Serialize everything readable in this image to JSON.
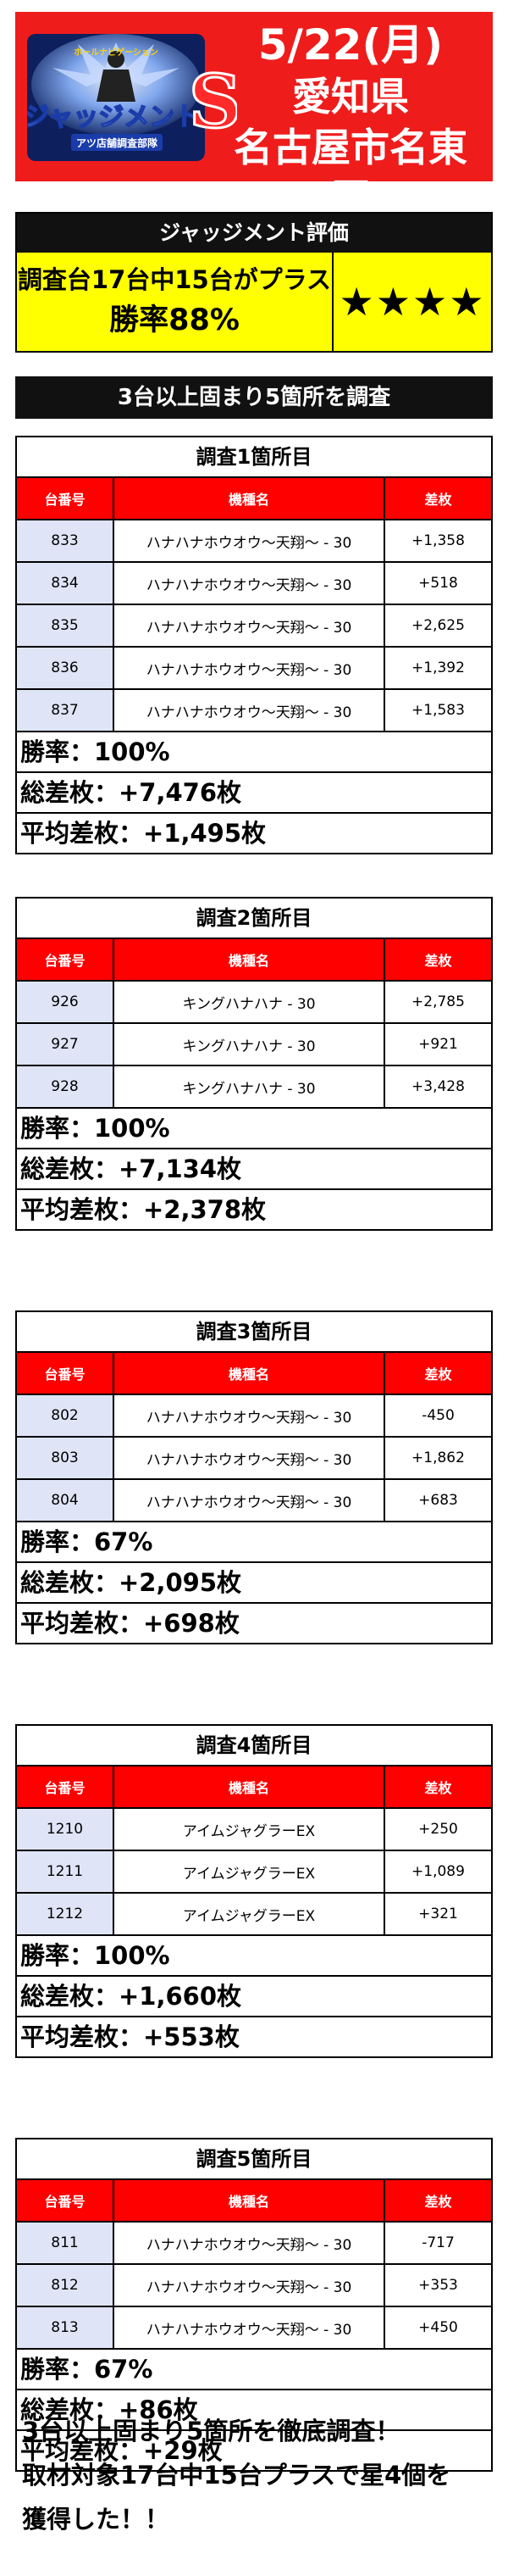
{
  "header": {
    "logo_text_top": "ホールナビゲーション",
    "logo_text_main": "ジャッジメント",
    "logo_letter": "S",
    "logo_text_sub": "アツ店舗調査部隊",
    "date": "5/22(月)",
    "prefecture": "愛知県",
    "city": "名古屋市名東区"
  },
  "evaluation": {
    "title": "ジャッジメント評価",
    "line1": "調査台17台中15台がプラス",
    "line2": "勝率88%",
    "stars": "★★★★"
  },
  "section_banner": "3台以上固まり5箇所を調査",
  "table_headers": [
    "台番号",
    "機種名",
    "差枚"
  ],
  "surveys": [
    {
      "title": "調査1箇所目",
      "rows": [
        [
          "833",
          "ハナハナホウオウ～天翔～ - 30",
          "+1,358"
        ],
        [
          "834",
          "ハナハナホウオウ～天翔～ - 30",
          "+518"
        ],
        [
          "835",
          "ハナハナホウオウ～天翔～ - 30",
          "+2,625"
        ],
        [
          "836",
          "ハナハナホウオウ～天翔～ - 30",
          "+1,392"
        ],
        [
          "837",
          "ハナハナホウオウ～天翔～ - 30",
          "+1,583"
        ]
      ],
      "win_rate": "勝率：100%",
      "total": "総差枚：+7,476枚",
      "average": "平均差枚：+1,495枚"
    },
    {
      "title": "調査2箇所目",
      "rows": [
        [
          "926",
          "キングハナハナ - 30",
          "+2,785"
        ],
        [
          "927",
          "キングハナハナ - 30",
          "+921"
        ],
        [
          "928",
          "キングハナハナ - 30",
          "+3,428"
        ]
      ],
      "win_rate": "勝率：100%",
      "total": "総差枚：+7,134枚",
      "average": "平均差枚：+2,378枚"
    },
    {
      "title": "調査3箇所目",
      "rows": [
        [
          "802",
          "ハナハナホウオウ～天翔～ - 30",
          "-450"
        ],
        [
          "803",
          "ハナハナホウオウ～天翔～ - 30",
          "+1,862"
        ],
        [
          "804",
          "ハナハナホウオウ～天翔～ - 30",
          "+683"
        ]
      ],
      "win_rate": "勝率：67%",
      "total": "総差枚：+2,095枚",
      "average": "平均差枚：+698枚"
    },
    {
      "title": "調査4箇所目",
      "rows": [
        [
          "1210",
          "アイムジャグラーEX",
          "+250"
        ],
        [
          "1211",
          "アイムジャグラーEX",
          "+1,089"
        ],
        [
          "1212",
          "アイムジャグラーEX",
          "+321"
        ]
      ],
      "win_rate": "勝率：100%",
      "total": "総差枚：+1,660枚",
      "average": "平均差枚：+553枚"
    },
    {
      "title": "調査5箇所目",
      "rows": [
        [
          "811",
          "ハナハナホウオウ～天翔～ - 30",
          "-717"
        ],
        [
          "812",
          "ハナハナホウオウ～天翔～ - 30",
          "+353"
        ],
        [
          "813",
          "ハナハナホウオウ～天翔～ - 30",
          "+450"
        ]
      ],
      "win_rate": "勝率：67%",
      "total": "総差枚：+86枚",
      "average": "平均差枚：+29枚"
    }
  ],
  "footer": {
    "line1": "3台以上固まり5箇所を徹底調査！",
    "line2": "取材対象17台中15台プラスで星4個を",
    "line3": "獲得した！！"
  }
}
